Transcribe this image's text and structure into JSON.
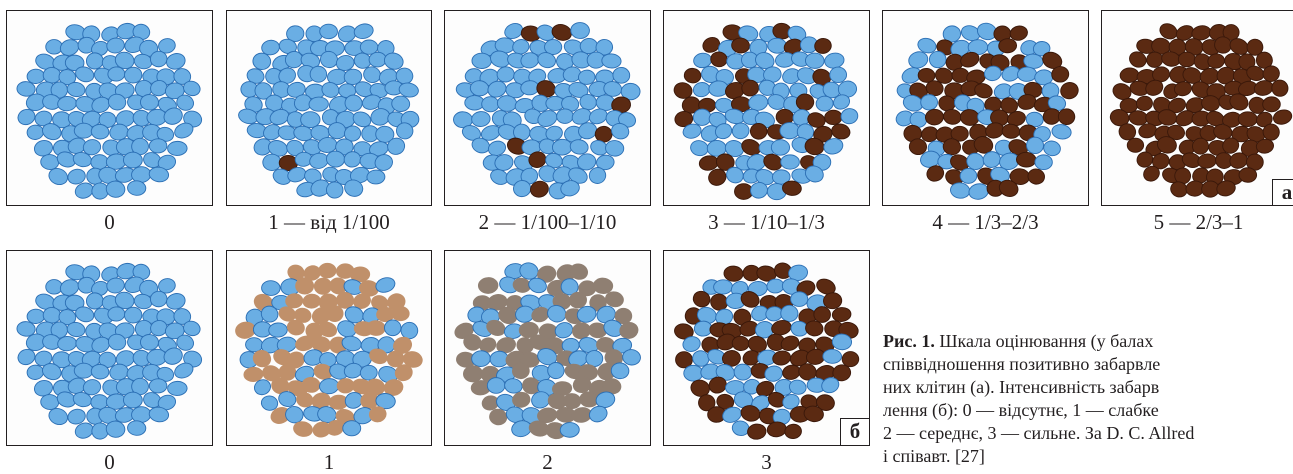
{
  "colors": {
    "blue_cell": "#6aaee4",
    "blue_edge": "#2c6fb4",
    "brown_cell": "#5b2a12",
    "brown_edge": "#3a180a",
    "light_brown_cell": "#c0906a",
    "mid_brown_cell": "#8f7f72",
    "border": "#231f20"
  },
  "panels_top": [
    {
      "caption": "0",
      "positive_fraction": 0,
      "stain": "brown"
    },
    {
      "caption": "1 — від 1/100",
      "positive_fraction": 0.01,
      "stain": "brown"
    },
    {
      "caption": "2 — 1/100–1/10",
      "positive_fraction": 0.08,
      "stain": "brown"
    },
    {
      "caption": "3 — 1/10–1/3",
      "positive_fraction": 0.33,
      "stain": "brown"
    },
    {
      "caption": "4 — 1/3–2/3",
      "positive_fraction": 0.55,
      "stain": "brown"
    },
    {
      "caption": "5 — 2/3–1",
      "positive_fraction": 1,
      "stain": "brown",
      "tag": "а"
    }
  ],
  "panels_bottom": [
    {
      "caption": "0",
      "positive_fraction": 0,
      "stain": "brown"
    },
    {
      "caption": "1",
      "positive_fraction": 0.6,
      "stain": "light_brown"
    },
    {
      "caption": "2",
      "positive_fraction": 0.6,
      "stain": "mid_brown"
    },
    {
      "caption": "3",
      "positive_fraction": 0.6,
      "stain": "brown",
      "tag": "б"
    }
  ],
  "figure_caption": {
    "label": "Рис. 1.",
    "lines": [
      " Шкала оцінювання (у балах",
      "співвідношення позитивно забарвле",
      "них клітин (а). Інтенсивність забарв",
      "лення (б): 0 — відсутнє, 1 — слабке",
      "2 — середнє, 3 — сильне. За D. C. Allred",
      "і співавт. [27]"
    ]
  }
}
